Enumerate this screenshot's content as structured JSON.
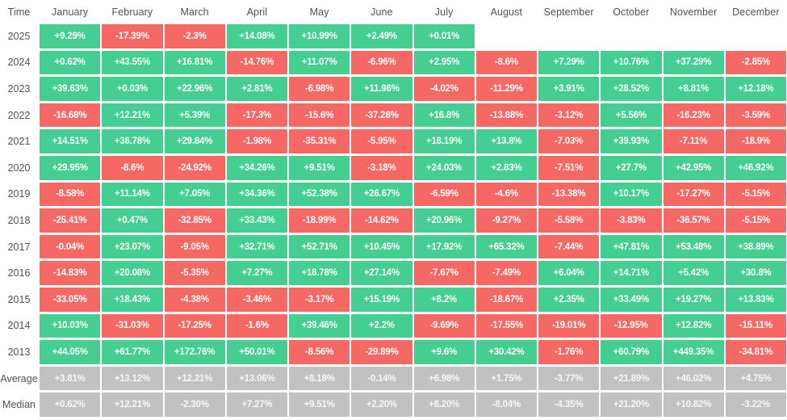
{
  "colors": {
    "positive": "#44CE91",
    "negative": "#F66863",
    "summary": "#C1C1C1",
    "summary_text": "#F7F7F7",
    "cell_text": "#FFFFFF",
    "label_text": "#4D5156"
  },
  "chart_data": {
    "type": "heatmap",
    "title": "Monthly returns heatmap by year",
    "corner_label": "Time",
    "legend_position": "none",
    "grid": false,
    "columns": [
      "January",
      "February",
      "March",
      "April",
      "May",
      "June",
      "July",
      "August",
      "September",
      "October",
      "November",
      "December"
    ],
    "rows": [
      {
        "label": "2025",
        "kind": "year",
        "values": [
          "+9.29%",
          "-17.39%",
          "-2.3%",
          "+14.08%",
          "+10.99%",
          "+2.49%",
          "+0.01%",
          null,
          null,
          null,
          null,
          null
        ]
      },
      {
        "label": "2024",
        "kind": "year",
        "values": [
          "+0.62%",
          "+43.55%",
          "+16.81%",
          "-14.76%",
          "+11.07%",
          "-6.96%",
          "+2.95%",
          "-8.6%",
          "+7.29%",
          "+10.76%",
          "+37.29%",
          "-2.85%"
        ]
      },
      {
        "label": "2023",
        "kind": "year",
        "values": [
          "+39.63%",
          "+0.03%",
          "+22.96%",
          "+2.81%",
          "-6.98%",
          "+11.98%",
          "-4.02%",
          "-11.29%",
          "+3.91%",
          "+28.52%",
          "+8.81%",
          "+12.18%"
        ]
      },
      {
        "label": "2022",
        "kind": "year",
        "values": [
          "-16.68%",
          "+12.21%",
          "+5.39%",
          "-17.3%",
          "-15.6%",
          "-37.28%",
          "+16.8%",
          "-13.88%",
          "-3.12%",
          "+5.56%",
          "-16.23%",
          "-3.59%"
        ]
      },
      {
        "label": "2021",
        "kind": "year",
        "values": [
          "+14.51%",
          "+36.78%",
          "+29.84%",
          "-1.98%",
          "-35.31%",
          "-5.95%",
          "+18.19%",
          "+13.8%",
          "-7.03%",
          "+39.93%",
          "-7.11%",
          "-18.9%"
        ]
      },
      {
        "label": "2020",
        "kind": "year",
        "values": [
          "+29.95%",
          "-8.6%",
          "-24.92%",
          "+34.26%",
          "+9.51%",
          "-3.18%",
          "+24.03%",
          "+2.83%",
          "-7.51%",
          "+27.7%",
          "+42.95%",
          "+46.92%"
        ]
      },
      {
        "label": "2019",
        "kind": "year",
        "values": [
          "-8.58%",
          "+11.14%",
          "+7.05%",
          "+34.36%",
          "+52.38%",
          "+26.67%",
          "-6.59%",
          "-4.6%",
          "-13.38%",
          "+10.17%",
          "-17.27%",
          "-5.15%"
        ]
      },
      {
        "label": "2018",
        "kind": "year",
        "values": [
          "-25.41%",
          "+0.47%",
          "-32.85%",
          "+33.43%",
          "-18.99%",
          "-14.62%",
          "+20.96%",
          "-9.27%",
          "-5.58%",
          "-3.83%",
          "-36.57%",
          "-5.15%"
        ]
      },
      {
        "label": "2017",
        "kind": "year",
        "values": [
          "-0.04%",
          "+23.07%",
          "-9.05%",
          "+32.71%",
          "+52.71%",
          "+10.45%",
          "+17.92%",
          "+65.32%",
          "-7.44%",
          "+47.81%",
          "+53.48%",
          "+38.89%"
        ]
      },
      {
        "label": "2016",
        "kind": "year",
        "values": [
          "-14.83%",
          "+20.08%",
          "-5.35%",
          "+7.27%",
          "+18.78%",
          "+27.14%",
          "-7.67%",
          "-7.49%",
          "+6.04%",
          "+14.71%",
          "+5.42%",
          "+30.8%"
        ]
      },
      {
        "label": "2015",
        "kind": "year",
        "values": [
          "-33.05%",
          "+18.43%",
          "-4.38%",
          "-3.46%",
          "-3.17%",
          "+15.19%",
          "+8.2%",
          "-18.67%",
          "+2.35%",
          "+33.49%",
          "+19.27%",
          "+13.83%"
        ]
      },
      {
        "label": "2014",
        "kind": "year",
        "values": [
          "+10.03%",
          "-31.03%",
          "-17.25%",
          "-1.6%",
          "+39.46%",
          "+2.2%",
          "-9.69%",
          "-17.55%",
          "-19.01%",
          "-12.95%",
          "+12.82%",
          "-15.11%"
        ]
      },
      {
        "label": "2013",
        "kind": "year",
        "values": [
          "+44.05%",
          "+61.77%",
          "+172.76%",
          "+50.01%",
          "-8.56%",
          "-29.89%",
          "+9.6%",
          "+30.42%",
          "-1.76%",
          "+60.79%",
          "+449.35%",
          "-34.81%"
        ]
      },
      {
        "label": "Average",
        "kind": "summary",
        "values": [
          "+3.81%",
          "+13.12%",
          "+12.21%",
          "+13.06%",
          "+8.18%",
          "-0.14%",
          "+6.98%",
          "+1.75%",
          "-3.77%",
          "+21.89%",
          "+46.02%",
          "+4.75%"
        ]
      },
      {
        "label": "Median",
        "kind": "summary",
        "values": [
          "+0.62%",
          "+12.21%",
          "-2.30%",
          "+7.27%",
          "+9.51%",
          "+2.20%",
          "+8.20%",
          "-8.04%",
          "-4.35%",
          "+21.20%",
          "+10.82%",
          "-3.22%"
        ]
      }
    ]
  }
}
